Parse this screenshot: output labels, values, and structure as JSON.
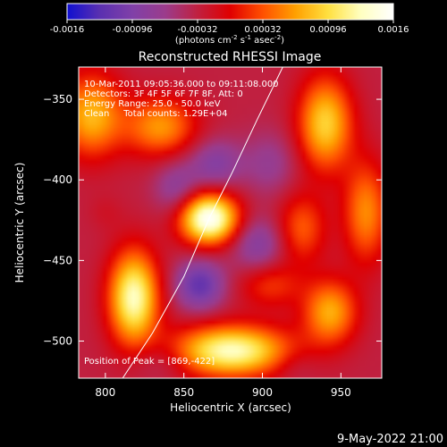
{
  "colorbar": {
    "tick_labels": [
      "-0.0016",
      "-0.00096",
      "-0.00032",
      "0.00032",
      "0.00096",
      "0.0016"
    ],
    "tick_values": [
      -0.0016,
      -0.00096,
      -0.00032,
      0.00032,
      0.00096,
      0.0016
    ],
    "range": [
      -0.0016,
      0.0016
    ],
    "unit_label": "(photons cm",
    "unit_exp1": "-2",
    "unit_mid": " s",
    "unit_exp2": "-1",
    "unit_mid2": " asec",
    "unit_exp3": "-2",
    "unit_end": ")",
    "colors": [
      "#1010d0",
      "#5a30b0",
      "#8040a8",
      "#9b3c8c",
      "#c02040",
      "#e00000",
      "#ff5000",
      "#ffa000",
      "#ffe040",
      "#ffffc0",
      "#ffffff"
    ]
  },
  "chart_data": {
    "type": "heatmap",
    "title": "Reconstructed RHESSI Image",
    "xlabel": "Heliocentric X (arcsec)",
    "ylabel": "Heliocentric Y (arcsec)",
    "xlim": [
      783,
      976
    ],
    "ylim": [
      -523,
      -330
    ],
    "x_ticks": [
      800,
      850,
      900,
      950
    ],
    "x_tick_labels": [
      "800",
      "850",
      "900",
      "950"
    ],
    "y_ticks": [
      -350,
      -400,
      -450,
      -500
    ],
    "y_tick_labels": [
      "−350",
      "−400",
      "−450",
      "−500"
    ],
    "background_value": -0.00032,
    "sources": [
      {
        "x": 866,
        "y": -424,
        "value": 0.0016,
        "sx": 13,
        "sy": 11
      },
      {
        "x": 818,
        "y": -473,
        "value": 0.0013,
        "sx": 11,
        "sy": 20
      },
      {
        "x": 880,
        "y": -506,
        "value": 0.0013,
        "sx": 26,
        "sy": 11
      },
      {
        "x": 791,
        "y": -360,
        "value": 0.00075,
        "sx": 14,
        "sy": 18
      },
      {
        "x": 940,
        "y": -365,
        "value": 0.0009,
        "sx": 12,
        "sy": 20
      },
      {
        "x": 835,
        "y": -367,
        "value": 0.0006,
        "sx": 16,
        "sy": 13
      },
      {
        "x": 966,
        "y": -420,
        "value": 0.00055,
        "sx": 10,
        "sy": 22
      },
      {
        "x": 943,
        "y": -482,
        "value": 0.0007,
        "sx": 12,
        "sy": 14
      },
      {
        "x": 925,
        "y": -430,
        "value": 0.00035,
        "sx": 11,
        "sy": 15
      },
      {
        "x": 905,
        "y": -465,
        "value": 0.0002,
        "sx": 14,
        "sy": 10
      },
      {
        "x": 870,
        "y": -390,
        "value": -0.0009,
        "sx": 12,
        "sy": 11
      },
      {
        "x": 845,
        "y": -405,
        "value": -0.0008,
        "sx": 10,
        "sy": 12
      },
      {
        "x": 860,
        "y": -465,
        "value": -0.0012,
        "sx": 11,
        "sy": 11
      },
      {
        "x": 897,
        "y": -440,
        "value": -0.0009,
        "sx": 12,
        "sy": 12
      },
      {
        "x": 905,
        "y": -390,
        "value": -0.0007,
        "sx": 12,
        "sy": 14
      },
      {
        "x": 835,
        "y": -512,
        "value": -0.0006,
        "sx": 14,
        "sy": 9
      },
      {
        "x": 920,
        "y": -515,
        "value": -0.0005,
        "sx": 10,
        "sy": 8
      },
      {
        "x": 800,
        "y": -420,
        "value": -0.0002,
        "sx": 8,
        "sy": 8
      }
    ],
    "limb_curve": {
      "points": [
        [
          811,
          -523
        ],
        [
          830,
          -495
        ],
        [
          850,
          -460
        ],
        [
          866,
          -424
        ],
        [
          881,
          -395
        ],
        [
          897,
          -362
        ],
        [
          913,
          -330
        ]
      ]
    },
    "annotations": [
      "10-Mar-2011 09:05:36.000 to 09:11:08.000",
      "Detectors: 3F 4F 5F 6F 7F 8F, Att: 0",
      "Energy Range: 25.0 - 50.0 keV",
      "Clean     Total counts: 1.29E+04"
    ],
    "peak_label": "Position of Peak = [869,-422]",
    "grid": false,
    "legend": "none"
  },
  "footer": {
    "date": "9-May-2022 21:00"
  }
}
